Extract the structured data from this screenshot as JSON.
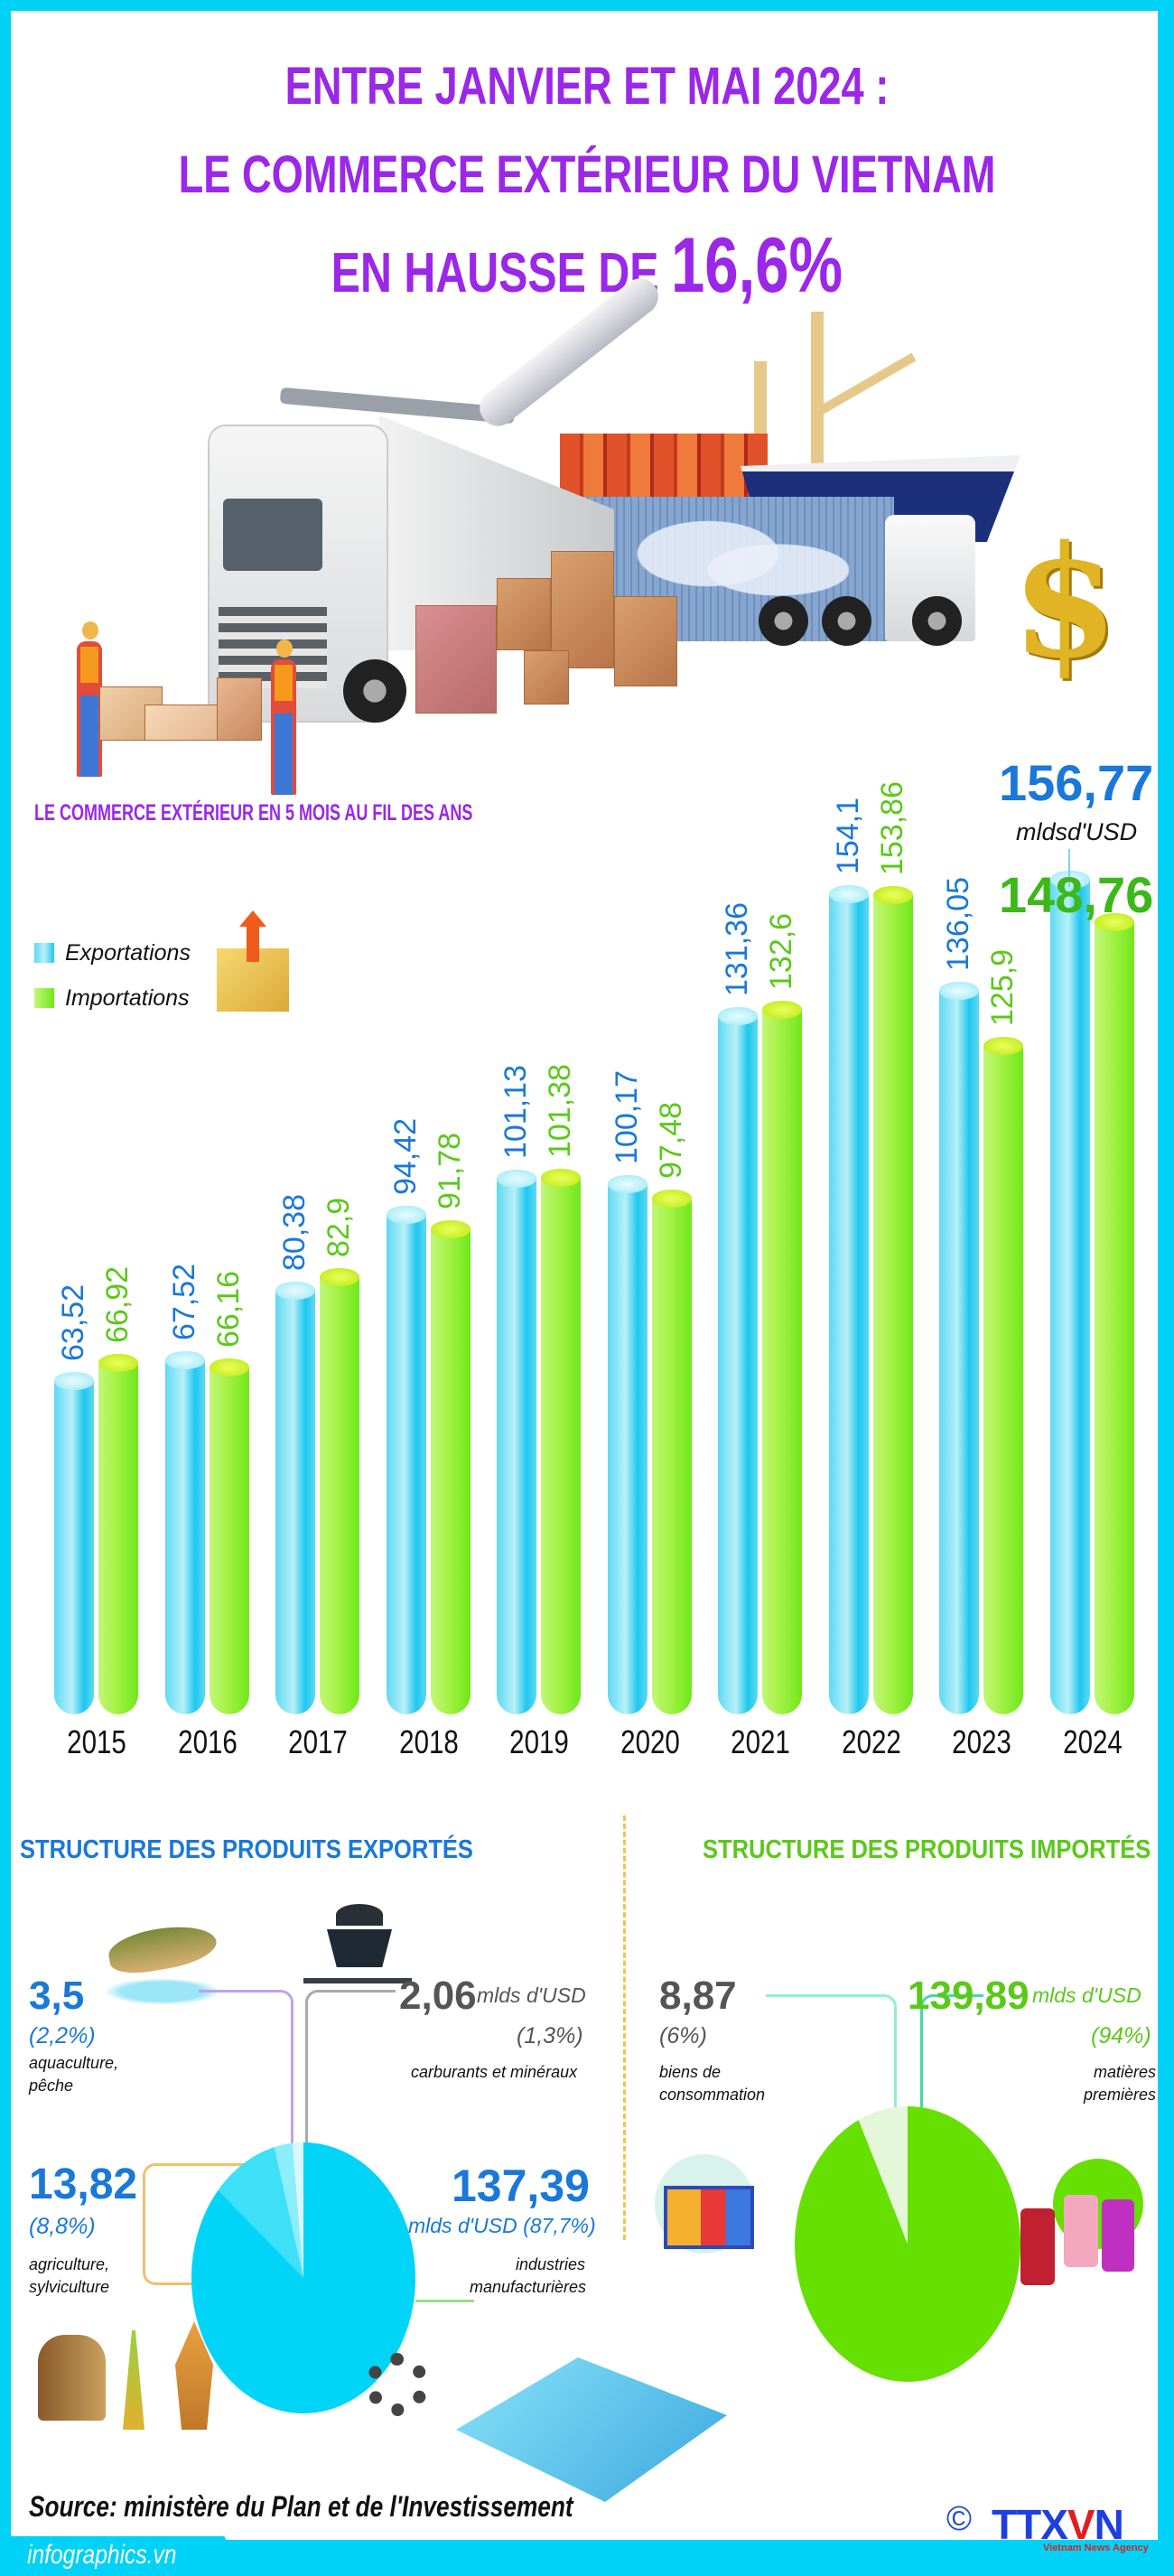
{
  "header": {
    "line1": "ENTRE JANVIER ET MAI 2024 :",
    "line2": "LE COMMERCE EXTÉRIEUR DU VIETNAM",
    "line3_prefix": "EN HAUSSE DE ",
    "line3_highlight": "16,6%"
  },
  "colors": {
    "frame": "#00d2f7",
    "title_purple": "#9b27e8",
    "export_blue": "#1a78d8",
    "import_green": "#5bc81a",
    "export_bar": "#29cbef",
    "import_bar": "#7aea22",
    "divider": "#f2c14e"
  },
  "chart_section": {
    "title": "LE COMMERCE EXTÉRIEUR EN 5 MOIS AU FIL DES ANS",
    "legend": [
      {
        "label": "Exportations",
        "color": "#29cbef"
      },
      {
        "label": "Importations",
        "color": "#7aea22"
      }
    ],
    "callout": {
      "export_value": "156,77",
      "unit": "mldsd'USD",
      "import_value": "148,76"
    }
  },
  "chart_data": {
    "type": "bar",
    "title": "LE COMMERCE EXTÉRIEUR EN 5 MOIS AU FIL DES ANS",
    "xlabel": "",
    "ylabel": "mlds d'USD",
    "categories": [
      "2015",
      "2016",
      "2017",
      "2018",
      "2019",
      "2020",
      "2021",
      "2022",
      "2023",
      "2024"
    ],
    "series": [
      {
        "name": "Exportations",
        "values": [
          63.52,
          67.52,
          80.38,
          94.42,
          101.13,
          100.17,
          131.36,
          154.1,
          136.05,
          156.77
        ],
        "labels": [
          "63,52",
          "67,52",
          "80,38",
          "94,42",
          "101,13",
          "100,17",
          "131,36",
          "154,1",
          "136,05",
          "156,77"
        ]
      },
      {
        "name": "Importations",
        "values": [
          66.92,
          66.16,
          82.9,
          91.78,
          101.38,
          97.48,
          132.6,
          153.86,
          125.9,
          148.76
        ],
        "labels": [
          "66,92",
          "66,16",
          "82,9",
          "91,78",
          "101,38",
          "97,48",
          "132,6",
          "153,86",
          "125,9",
          "148,76"
        ]
      }
    ],
    "grid": false,
    "legend_position": "left",
    "ylim": [
      0,
      160
    ]
  },
  "exports_structure": {
    "title": "STRUCTURE DES PRODUITS EXPORTÉS",
    "unit": "mlds d'USD",
    "items": [
      {
        "value": "3,5",
        "pct": "(2,2%)",
        "category": "aquaculture, pêche",
        "cat1": "aquaculture,",
        "cat2": "pêche"
      },
      {
        "value": "2,06",
        "unit": "mlds d'USD",
        "pct": "(1,3%)",
        "category": "carburants et minéraux"
      },
      {
        "value": "13,82",
        "pct": "(8,8%)",
        "category": "agriculture, sylviculture",
        "cat1": "agriculture,",
        "cat2": "sylviculture"
      },
      {
        "value": "137,39",
        "unit_pct": "mlds d'USD (87,7%)",
        "category": "industries manufacturières",
        "cat1": "industries",
        "cat2": "manufacturières"
      }
    ]
  },
  "imports_structure": {
    "title": "STRUCTURE DES PRODUITS IMPORTÉS",
    "items": [
      {
        "value": "8,87",
        "pct": "(6%)",
        "category": "biens de consommation",
        "cat1": "biens de",
        "cat2": "consommation"
      },
      {
        "value": "139,89",
        "unit": "mlds d'USD",
        "pct": "(94%)",
        "category": "matières premières",
        "cat1": "matières",
        "cat2": "premières"
      }
    ]
  },
  "icons": {
    "dollar": "$",
    "copyright": "©"
  },
  "footer": {
    "source": "Source: ministère du Plan et de l'Investissement",
    "site": "infographics.vn",
    "logo_prefix": "TTX",
    "logo_v": "V",
    "logo_suffix": "N",
    "logo_sub": "Vietnam News Agency"
  }
}
